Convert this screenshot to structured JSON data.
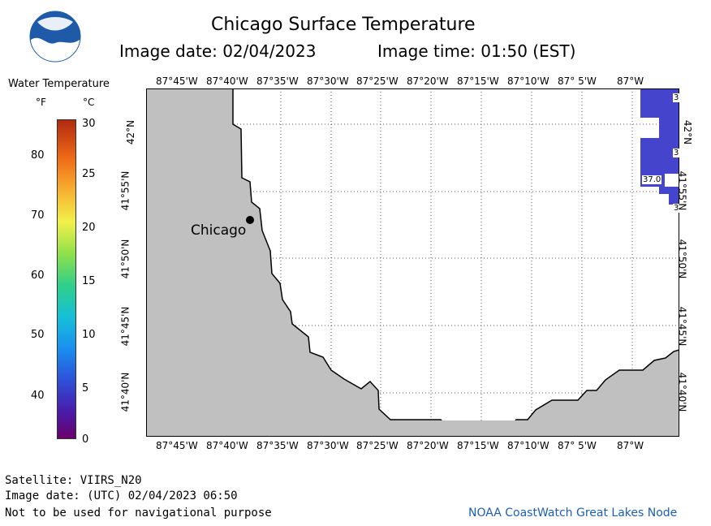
{
  "title": "Chicago Surface Temperature",
  "image_date_line": "Image date: 02/04/2023",
  "image_time_line": "Image time: 01:50 (EST)",
  "legend": {
    "title": "Water Temperature",
    "unit_f": "°F",
    "unit_c": "°C",
    "f_ticks": [
      "80",
      "70",
      "60",
      "50",
      "40"
    ],
    "c_ticks": [
      "30",
      "25",
      "20",
      "15",
      "10",
      "5",
      "0"
    ]
  },
  "map": {
    "lon_labels": [
      "87°45'W",
      "87°40'W",
      "87°35'W",
      "87°30'W",
      "87°25'W",
      "87°20'W",
      "87°15'W",
      "87°10'W",
      "87° 5'W",
      "87°W"
    ],
    "lat_labels": [
      "42°N",
      "41°55'N",
      "41°50'N",
      "41°45'N",
      "41°40'N"
    ],
    "city_label": "Chicago",
    "temp_labels": [
      "3",
      "3",
      "37.0",
      "3"
    ]
  },
  "colors": {
    "land": "#c0c0c0",
    "water_measured": "#4444cc",
    "credit": "#1a5fb4"
  },
  "footer": {
    "satellite": "Satellite: VIIRS_N20",
    "utc_date": "Image date: (UTC) 02/04/2023  06:50",
    "disclaimer": "Not to be used for navigational purpose",
    "credit": "NOAA CoastWatch Great Lakes Node"
  }
}
